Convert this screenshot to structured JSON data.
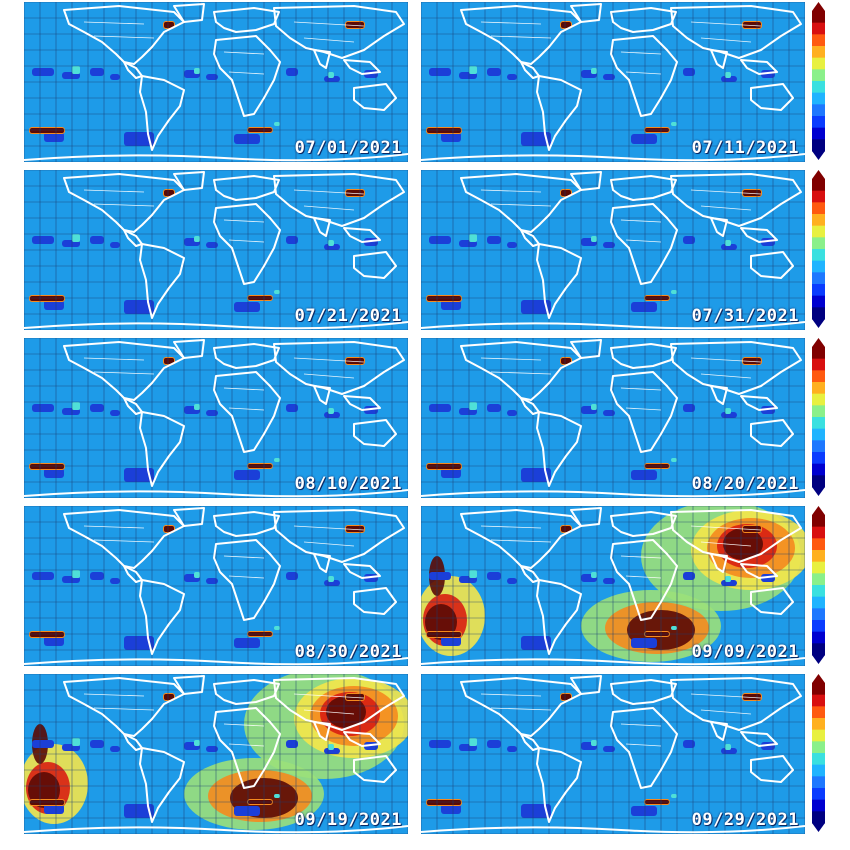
{
  "panels": [
    {
      "date": "07/01/2021",
      "hot": 0
    },
    {
      "date": "07/11/2021",
      "hot": 0
    },
    {
      "date": "07/21/2021",
      "hot": 0
    },
    {
      "date": "07/31/2021",
      "hot": 0
    },
    {
      "date": "08/10/2021",
      "hot": 0
    },
    {
      "date": "08/20/2021",
      "hot": 0
    },
    {
      "date": "08/30/2021",
      "hot": 0
    },
    {
      "date": "09/09/2021",
      "hot": 1
    },
    {
      "date": "09/19/2021",
      "hot": 1
    },
    {
      "date": "09/29/2021",
      "hot": 0
    }
  ],
  "colors": {
    "ocean": "#1e9be8",
    "grid": "#1b3f73",
    "coast": "#ffffff",
    "dark_blue": "#1b3fd8",
    "cyan": "#4fe0d8",
    "maroon": "#5a0a06",
    "red": "#d81f12",
    "orange": "#f58a1e",
    "yellow": "#f4e64a",
    "green": "#9be07a"
  },
  "colorbar": {
    "stops": [
      "#000080",
      "#0000d0",
      "#0a3cff",
      "#1e78ff",
      "#20b4ff",
      "#3ae0e0",
      "#8af08a",
      "#e8f040",
      "#ffb020",
      "#ff5a10",
      "#d81010",
      "#800000"
    ]
  }
}
